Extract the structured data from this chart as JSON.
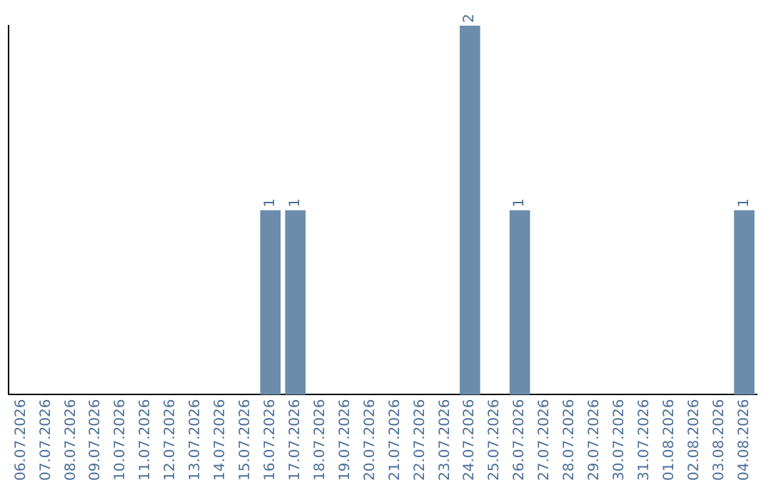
{
  "chart_data": {
    "type": "bar",
    "categories": [
      "06.07.2026",
      "07.07.2026",
      "08.07.2026",
      "09.07.2026",
      "10.07.2026",
      "11.07.2026",
      "12.07.2026",
      "13.07.2026",
      "14.07.2026",
      "15.07.2026",
      "16.07.2026",
      "17.07.2026",
      "18.07.2026",
      "19.07.2026",
      "20.07.2026",
      "21.07.2026",
      "22.07.2026",
      "23.07.2026",
      "24.07.2026",
      "25.07.2026",
      "26.07.2026",
      "27.07.2026",
      "28.07.2026",
      "29.07.2026",
      "30.07.2026",
      "31.07.2026",
      "01.08.2026",
      "02.08.2026",
      "03.08.2026",
      "04.08.2026"
    ],
    "values": [
      0,
      0,
      0,
      0,
      0,
      0,
      0,
      0,
      0,
      0,
      1,
      1,
      0,
      0,
      0,
      0,
      0,
      0,
      2,
      0,
      1,
      0,
      0,
      0,
      0,
      0,
      0,
      0,
      0,
      1
    ],
    "value_labels": [
      null,
      null,
      null,
      null,
      null,
      null,
      null,
      null,
      null,
      null,
      "1",
      "1",
      null,
      null,
      null,
      null,
      null,
      null,
      "2",
      null,
      "1",
      null,
      null,
      null,
      null,
      null,
      null,
      null,
      null,
      "1"
    ],
    "color": "#6b8cab",
    "tick_labels": "x",
    "grid": false,
    "legend": false
  }
}
